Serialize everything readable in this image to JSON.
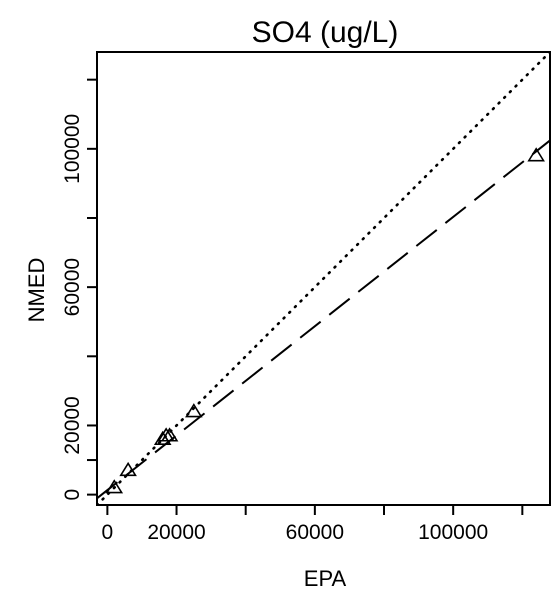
{
  "chart_data": {
    "type": "scatter",
    "title": "SO4 (ug/L)",
    "xlabel": "EPA",
    "ylabel": "NMED",
    "xlim": [
      -3000,
      128000
    ],
    "ylim": [
      -3000,
      128000
    ],
    "x_ticks": [
      0,
      20000,
      60000,
      100000
    ],
    "x_tick_labels": [
      "0",
      "20000",
      "60000",
      "100000"
    ],
    "x_minor_ticks": [
      40000,
      80000,
      120000
    ],
    "y_ticks": [
      0,
      20000,
      60000,
      100000
    ],
    "y_tick_labels": [
      "0",
      "20000",
      "60000",
      "100000"
    ],
    "y_minor_ticks": [
      10000,
      40000,
      80000,
      120000
    ],
    "points": {
      "marker": "triangle",
      "x": [
        2000,
        6000,
        16000,
        17000,
        18000,
        25000,
        124000
      ],
      "y": [
        2000,
        7000,
        16000,
        17000,
        17000,
        24000,
        98000
      ]
    },
    "lines": [
      {
        "style": "dotted",
        "slope": 1.0,
        "intercept": 0
      },
      {
        "style": "dashed",
        "slope": 0.79,
        "intercept": 1300
      }
    ],
    "grid": false,
    "colors": {
      "foreground": "#000000",
      "background": "#ffffff"
    }
  }
}
